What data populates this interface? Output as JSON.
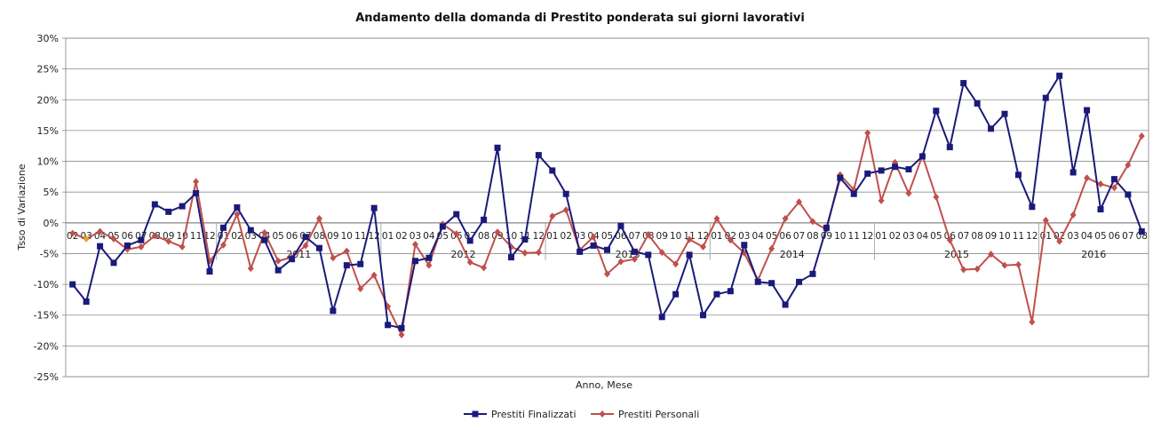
{
  "chart_data": {
    "type": "line",
    "title": "Andamento della domanda di Prestito ponderata sui giorni lavorativi",
    "xlabel": "Anno, Mese",
    "ylabel": "Tsso di Variazione",
    "ylim": [
      -25,
      30
    ],
    "y_tick_values": [
      30,
      25,
      20,
      15,
      10,
      5,
      0,
      -5,
      -10,
      -15,
      -20,
      -25
    ],
    "y_tick_labels": [
      "30%",
      "25%",
      "20%",
      "15%",
      "10%",
      "5%",
      "0%",
      "-5%",
      "-10%",
      "-15%",
      "-20%",
      "-25%"
    ],
    "grid": true,
    "legend_position": "bottom",
    "x": [
      "02",
      "03",
      "04",
      "05",
      "06",
      "07",
      "08",
      "09",
      "10",
      "11",
      "12",
      "01",
      "02",
      "03",
      "04",
      "05",
      "06",
      "07",
      "08",
      "09",
      "10",
      "11",
      "12",
      "01",
      "02",
      "03",
      "04",
      "05",
      "06",
      "07",
      "08",
      "09",
      "10",
      "11",
      "12",
      "01",
      "02",
      "03",
      "04",
      "05",
      "06",
      "07",
      "08",
      "09",
      "10",
      "11",
      "12",
      "01",
      "02",
      "03",
      "04",
      "05",
      "06",
      "07",
      "08",
      "09",
      "10",
      "11",
      "12",
      "01",
      "02",
      "03",
      "04",
      "05",
      "06",
      "07",
      "08",
      "09",
      "10",
      "11",
      "12",
      "01",
      "02",
      "03",
      "04",
      "05",
      "06",
      "07",
      "08"
    ],
    "years": [
      {
        "label": "2011",
        "start_index": 11,
        "end_index": 22
      },
      {
        "label": "2012",
        "start_index": 23,
        "end_index": 34
      },
      {
        "label": "2013",
        "start_index": 35,
        "end_index": 46
      },
      {
        "label": "2014",
        "start_index": 47,
        "end_index": 58
      },
      {
        "label": "2015",
        "start_index": 59,
        "end_index": 70
      },
      {
        "label": "2016",
        "start_index": 71,
        "end_index": 78
      }
    ],
    "series": [
      {
        "name": "Prestiti Finalizzati",
        "color": "#1a1a7a",
        "marker": "square",
        "values": [
          -10.0,
          -12.8,
          -3.8,
          -6.5,
          -3.7,
          -2.8,
          3.0,
          1.8,
          2.7,
          4.8,
          -7.9,
          -0.8,
          2.5,
          -1.2,
          -2.8,
          -7.7,
          -5.9,
          -2.3,
          -4.1,
          -14.3,
          -6.9,
          -6.7,
          2.4,
          -16.6,
          -17.1,
          -6.2,
          -5.7,
          -0.6,
          1.4,
          -2.9,
          0.5,
          12.2,
          -5.6,
          -2.7,
          11.0,
          8.5,
          4.7,
          -4.7,
          -3.7,
          -4.4,
          -0.5,
          -4.7,
          -5.2,
          -15.3,
          -11.6,
          -5.2,
          -15.0,
          -11.6,
          -11.1,
          -3.6,
          -9.6,
          -9.8,
          -13.3,
          -9.6,
          -8.3,
          -0.8,
          7.3,
          4.7,
          8.0,
          8.5,
          9.1,
          8.7,
          10.8,
          18.2,
          12.3,
          22.7,
          19.4,
          15.3,
          17.7,
          7.8,
          2.6,
          20.3,
          23.9,
          8.2,
          18.3,
          2.2,
          7.1,
          4.6,
          -1.4
        ]
      },
      {
        "name": "Prestiti Personali",
        "color": "#c0504d",
        "marker": "diamond",
        "values": [
          -1.7,
          -2.6,
          -1.4,
          -2.6,
          -4.3,
          -3.9,
          -2.1,
          -3.0,
          -3.9,
          6.7,
          -6.2,
          -3.6,
          1.4,
          -7.4,
          -1.6,
          -6.2,
          -5.6,
          -3.7,
          0.7,
          -5.7,
          -4.6,
          -10.7,
          -8.5,
          -13.6,
          -18.2,
          -3.5,
          -6.9,
          -0.2,
          -1.8,
          -6.4,
          -7.3,
          -1.5,
          -3.9,
          -4.9,
          -4.8,
          1.1,
          2.1,
          -4.4,
          -2.3,
          -8.3,
          -6.3,
          -5.9,
          -1.9,
          -4.8,
          -6.7,
          -2.7,
          -3.9,
          0.7,
          -2.8,
          -4.9,
          -9.3,
          -4.2,
          0.7,
          3.4,
          0.2,
          -1.1,
          7.8,
          5.4,
          14.6,
          3.6,
          9.8,
          4.8,
          10.9,
          4.2,
          -2.8,
          -7.6,
          -7.5,
          -5.1,
          -6.9,
          -6.8,
          -16.1,
          0.4,
          -3.0,
          1.3,
          7.3,
          6.3,
          5.7,
          9.4,
          14.1
        ]
      }
    ],
    "highlighted_point": {
      "series": "Prestiti Personali",
      "index": 1,
      "color": "#e8a21a"
    }
  }
}
